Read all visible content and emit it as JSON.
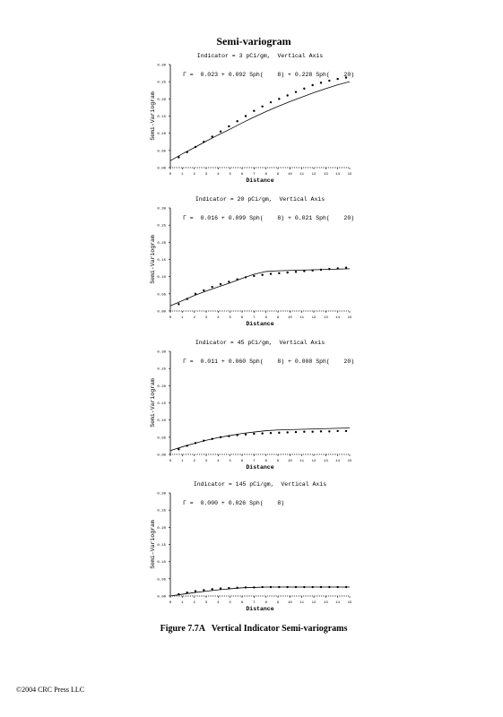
{
  "header": {
    "title": "Semi-variogram"
  },
  "chart_data": [
    {
      "type": "scatter",
      "title": "Indicator = 3 pCi/gm,  Vertical Axis",
      "annotation": "Γ =  0.023 + 0.092 Sph(    8) + 0.228 Sph(    20)",
      "x_label": "Distance",
      "y_label": "Semi-Variogram",
      "xlim": [
        0,
        15
      ],
      "xticks": [
        0,
        1,
        2,
        3,
        4,
        5,
        6,
        7,
        8,
        9,
        10,
        11,
        12,
        13,
        14,
        15
      ],
      "ylim": [
        0,
        0.3
      ],
      "yticks": [
        {
          "value": 0,
          "label": "0.00"
        },
        {
          "value": 0.05,
          "label": "0.05"
        },
        {
          "value": 0.1,
          "label": "0.10"
        },
        {
          "value": 0.15,
          "label": "0.15"
        },
        {
          "value": 0.2,
          "label": "0.20"
        },
        {
          "value": 0.25,
          "label": "0.25"
        },
        {
          "value": 0.3,
          "label": "0.30"
        }
      ],
      "color": "#000000",
      "x": [
        0.7,
        1.4,
        2.1,
        2.8,
        3.5,
        4.2,
        4.9,
        5.6,
        6.3,
        7,
        7.7,
        8.4,
        9.1,
        9.8,
        10.5,
        11.2,
        11.9,
        12.6,
        13.3,
        14,
        14.7
      ],
      "values": [
        0.03,
        0.045,
        0.06,
        0.075,
        0.09,
        0.105,
        0.12,
        0.135,
        0.15,
        0.165,
        0.178,
        0.19,
        0.2,
        0.21,
        0.22,
        0.23,
        0.24,
        0.247,
        0.253,
        0.258,
        0.262
      ],
      "fit_x": [
        0,
        1,
        2,
        3,
        4,
        5,
        6,
        7,
        8,
        9,
        10,
        11,
        12,
        13,
        14,
        15
      ],
      "fit_values": [
        0.02,
        0.04,
        0.058,
        0.077,
        0.095,
        0.112,
        0.13,
        0.147,
        0.163,
        0.178,
        0.192,
        0.205,
        0.218,
        0.23,
        0.241,
        0.25
      ]
    },
    {
      "type": "scatter",
      "title": "Indicator = 20 pCi/gm,  Vertical Axis",
      "annotation": "Γ =  0.016 + 0.099 Sph(    8) + 0.021 Sph(    20)",
      "x_label": "Distance",
      "y_label": "Semi-Variogram",
      "xlim": [
        0,
        15
      ],
      "xticks": [
        0,
        1,
        2,
        3,
        4,
        5,
        6,
        7,
        8,
        9,
        10,
        11,
        12,
        13,
        14,
        15
      ],
      "ylim": [
        0,
        0.3
      ],
      "yticks": [
        {
          "value": 0,
          "label": "0.00"
        },
        {
          "value": 0.05,
          "label": "0.05"
        },
        {
          "value": 0.1,
          "label": "0.10"
        },
        {
          "value": 0.15,
          "label": "0.15"
        },
        {
          "value": 0.2,
          "label": "0.20"
        },
        {
          "value": 0.25,
          "label": "0.25"
        },
        {
          "value": 0.3,
          "label": "0.30"
        }
      ],
      "color": "#000000",
      "x": [
        0.7,
        1.4,
        2.1,
        2.8,
        3.5,
        4.2,
        4.9,
        5.6,
        6.3,
        7,
        7.7,
        8.4,
        9.1,
        9.8,
        10.5,
        11.2,
        11.9,
        12.6,
        13.3,
        14,
        14.7
      ],
      "values": [
        0.02,
        0.035,
        0.05,
        0.06,
        0.07,
        0.078,
        0.085,
        0.092,
        0.098,
        0.102,
        0.105,
        0.108,
        0.11,
        0.112,
        0.114,
        0.116,
        0.118,
        0.12,
        0.122,
        0.124,
        0.126
      ],
      "fit_x": [
        0,
        1,
        2,
        3,
        4,
        5,
        6,
        7,
        8,
        9,
        10,
        11,
        12,
        13,
        14,
        15
      ],
      "fit_values": [
        0.015,
        0.03,
        0.045,
        0.058,
        0.07,
        0.082,
        0.095,
        0.107,
        0.115,
        0.117,
        0.118,
        0.119,
        0.12,
        0.121,
        0.122,
        0.123
      ]
    },
    {
      "type": "scatter",
      "title": "Indicator = 45 pCi/gm,  Vertical Axis",
      "annotation": "Γ =  0.011 + 0.060 Sph(    8) + 0.008 Sph(    20)",
      "x_label": "Distance",
      "y_label": "Semi-Variogram",
      "xlim": [
        0,
        15
      ],
      "xticks": [
        0,
        1,
        2,
        3,
        4,
        5,
        6,
        7,
        8,
        9,
        10,
        11,
        12,
        13,
        14,
        15
      ],
      "ylim": [
        0,
        0.3
      ],
      "yticks": [
        {
          "value": 0,
          "label": "0.00"
        },
        {
          "value": 0.05,
          "label": "0.05"
        },
        {
          "value": 0.1,
          "label": "0.10"
        },
        {
          "value": 0.15,
          "label": "0.15"
        },
        {
          "value": 0.2,
          "label": "0.20"
        },
        {
          "value": 0.25,
          "label": "0.25"
        },
        {
          "value": 0.3,
          "label": "0.30"
        }
      ],
      "color": "#000000",
      "x": [
        0.7,
        1.4,
        2.1,
        2.8,
        3.5,
        4.2,
        4.9,
        5.6,
        6.3,
        7,
        7.7,
        8.4,
        9.1,
        9.8,
        10.5,
        11.2,
        11.9,
        12.6,
        13.3,
        14,
        14.7
      ],
      "values": [
        0.015,
        0.025,
        0.033,
        0.04,
        0.045,
        0.05,
        0.053,
        0.056,
        0.058,
        0.06,
        0.061,
        0.062,
        0.063,
        0.064,
        0.065,
        0.066,
        0.066,
        0.067,
        0.067,
        0.068,
        0.068
      ],
      "fit_x": [
        0,
        1,
        2,
        3,
        4,
        5,
        6,
        7,
        8,
        9,
        10,
        11,
        12,
        13,
        14,
        15
      ],
      "fit_values": [
        0.011,
        0.022,
        0.032,
        0.041,
        0.049,
        0.055,
        0.061,
        0.065,
        0.069,
        0.071,
        0.072,
        0.073,
        0.074,
        0.075,
        0.076,
        0.077
      ]
    },
    {
      "type": "scatter",
      "title": "Indicator = 145 pCi/gm,  Vertical Axis",
      "annotation": "Γ =  0.000 + 0.026 Sph(    8)",
      "x_label": "Distance",
      "y_label": "Semi-Variogram",
      "xlim": [
        0,
        15
      ],
      "xticks": [
        0,
        1,
        2,
        3,
        4,
        5,
        6,
        7,
        8,
        9,
        10,
        11,
        12,
        13,
        14,
        15
      ],
      "ylim": [
        0,
        0.3
      ],
      "yticks": [
        {
          "value": 0,
          "label": "0.00"
        },
        {
          "value": 0.05,
          "label": "0.05"
        },
        {
          "value": 0.1,
          "label": "0.10"
        },
        {
          "value": 0.15,
          "label": "0.15"
        },
        {
          "value": 0.2,
          "label": "0.20"
        },
        {
          "value": 0.25,
          "label": "0.25"
        },
        {
          "value": 0.3,
          "label": "0.30"
        }
      ],
      "color": "#000000",
      "x": [
        0.7,
        1.4,
        2.1,
        2.8,
        3.5,
        4.2,
        4.9,
        5.6,
        6.3,
        7,
        7.7,
        8.4,
        9.1,
        9.8,
        10.5,
        11.2,
        11.9,
        12.6,
        13.3,
        14,
        14.7
      ],
      "values": [
        0.005,
        0.01,
        0.014,
        0.017,
        0.02,
        0.022,
        0.023,
        0.024,
        0.025,
        0.025,
        0.026,
        0.026,
        0.026,
        0.026,
        0.026,
        0.026,
        0.026,
        0.026,
        0.026,
        0.026,
        0.026
      ],
      "fit_x": [
        0,
        1,
        2,
        3,
        4,
        5,
        6,
        7,
        8,
        9,
        10,
        11,
        12,
        13,
        14,
        15
      ],
      "fit_values": [
        0,
        0.005,
        0.01,
        0.014,
        0.018,
        0.021,
        0.024,
        0.025,
        0.026,
        0.026,
        0.026,
        0.026,
        0.026,
        0.026,
        0.026,
        0.026
      ]
    }
  ],
  "caption": "Figure 7.7A   Vertical Indicator Semi-variograms",
  "footer": "©2004 CRC Press LLC"
}
